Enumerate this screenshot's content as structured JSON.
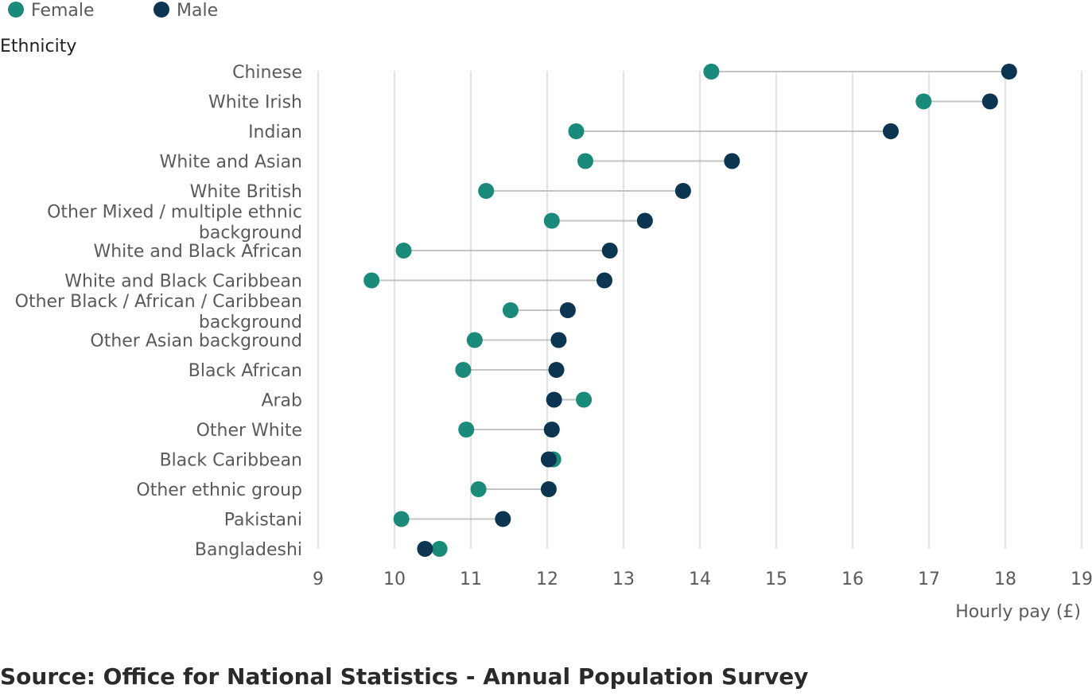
{
  "chart_data": {
    "type": "dumbbell",
    "title": "",
    "ylabel": "Ethnicity",
    "xlabel": "Hourly pay (£)",
    "xlim": [
      9,
      19
    ],
    "x_ticks": [
      "9",
      "10",
      "11",
      "12",
      "13",
      "14",
      "15",
      "16",
      "17",
      "18",
      "19"
    ],
    "grid": "vertical",
    "legend_position": "top-left",
    "series": [
      {
        "name": "Female",
        "color": "#1a8a7a"
      },
      {
        "name": "Male",
        "color": "#0b3550"
      }
    ],
    "categories": [
      {
        "label": [
          "Chinese"
        ],
        "female": 14.15,
        "male": 18.05
      },
      {
        "label": [
          "White Irish"
        ],
        "female": 16.93,
        "male": 17.8
      },
      {
        "label": [
          "Indian"
        ],
        "female": 12.38,
        "male": 16.5
      },
      {
        "label": [
          "White and Asian"
        ],
        "female": 12.5,
        "male": 14.42
      },
      {
        "label": [
          "White British"
        ],
        "female": 11.2,
        "male": 13.78
      },
      {
        "label": [
          "Other Mixed / multiple ethnic",
          "background"
        ],
        "female": 12.06,
        "male": 13.28
      },
      {
        "label": [
          "White and Black African"
        ],
        "female": 10.12,
        "male": 12.82
      },
      {
        "label": [
          "White and Black Caribbean"
        ],
        "female": 9.7,
        "male": 12.75
      },
      {
        "label": [
          "Other Black / African / Caribbean",
          "background"
        ],
        "female": 11.52,
        "male": 12.27
      },
      {
        "label": [
          "Other Asian background"
        ],
        "female": 11.05,
        "male": 12.15
      },
      {
        "label": [
          "Black African"
        ],
        "female": 10.9,
        "male": 12.12
      },
      {
        "label": [
          "Arab"
        ],
        "female": 12.48,
        "male": 12.09
      },
      {
        "label": [
          "Other White"
        ],
        "female": 10.94,
        "male": 12.06
      },
      {
        "label": [
          "Black Caribbean"
        ],
        "female": 12.08,
        "male": 12.02
      },
      {
        "label": [
          "Other ethnic group"
        ],
        "female": 11.1,
        "male": 12.02
      },
      {
        "label": [
          "Pakistani"
        ],
        "female": 10.09,
        "male": 11.42
      },
      {
        "label": [
          "Bangladeshi"
        ],
        "female": 10.59,
        "male": 10.4
      }
    ]
  },
  "source": "Source: Office for National Statistics - Annual Population Survey"
}
